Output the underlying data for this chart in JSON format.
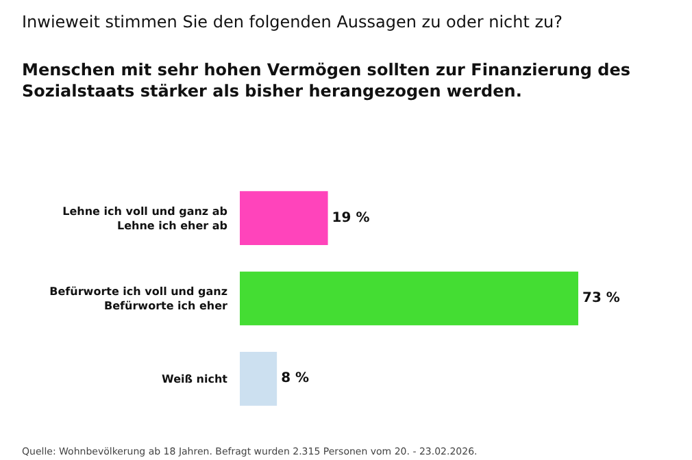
{
  "chart_data": {
    "type": "bar",
    "orientation": "horizontal",
    "subtitle": "Inwieweit stimmen Sie den folgenden Aussagen zu oder nicht zu?",
    "title": "Menschen mit sehr hohen Vermögen sollten zur Finanzierung des\nSozialstaats stärker als bisher herangezogen werden.",
    "categories": [
      "Lehne ich voll und ganz ab\nLehne ich eher ab",
      "Befürworte ich voll und ganz\nBefürworte ich eher",
      "Weiß nicht"
    ],
    "values": [
      19,
      73,
      8
    ],
    "colors": [
      "#ff44bb",
      "#44dd33",
      "#cce0f0"
    ],
    "value_labels": [
      "19 %",
      "73 %",
      "8 %"
    ],
    "annotations": [
      "Quelle: Wohnbevölkerung ab 18 Jahren. Befragt wurden 2.315 Personen vom 20. - 23.02.2026."
    ]
  }
}
